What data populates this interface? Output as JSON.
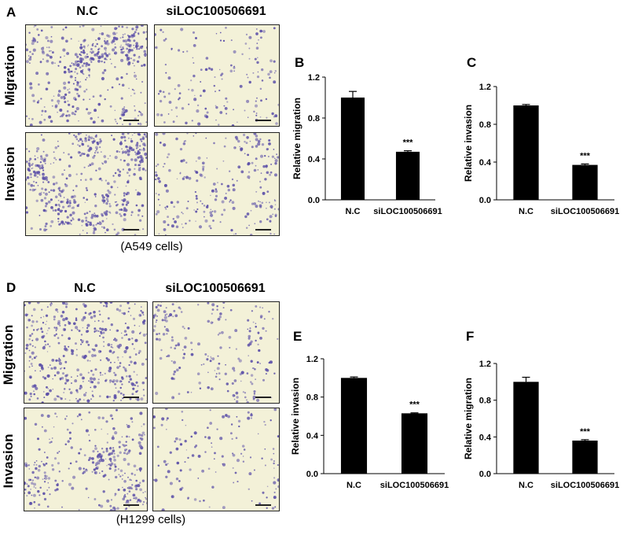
{
  "groups": [
    {
      "panel": "A",
      "columns": [
        "N.C",
        "siLOC100506691"
      ],
      "rows": [
        "Migration",
        "Invasion"
      ],
      "caption": "(A549 cells)"
    },
    {
      "panel": "D",
      "columns": [
        "N.C",
        "siLOC100506691"
      ],
      "rows": [
        "Migration",
        "Invasion"
      ],
      "caption": "(H1299 cells)"
    }
  ],
  "colors": {
    "bar": "#000000",
    "stain": "#5b4fa8",
    "background": "#f3f1d8"
  },
  "chart_data": [
    {
      "panel": "B",
      "type": "bar",
      "categories": [
        "N.C",
        "siLOC100506691"
      ],
      "values": [
        1.0,
        0.47
      ],
      "errors": [
        0.06,
        0.01
      ],
      "annotations": [
        "",
        "***"
      ],
      "ylabel": "Relative migration",
      "ylim": [
        0,
        1.2
      ],
      "yticks": [
        "0.0",
        "0.4",
        "0.8",
        "1.2"
      ]
    },
    {
      "panel": "C",
      "type": "bar",
      "categories": [
        "N.C",
        "siLOC100506691"
      ],
      "values": [
        1.0,
        0.37
      ],
      "errors": [
        0.01,
        0.01
      ],
      "annotations": [
        "",
        "***"
      ],
      "ylabel": "Relative invasion",
      "ylim": [
        0,
        1.2
      ],
      "yticks": [
        "0.0",
        "0.4",
        "0.8",
        "1.2"
      ]
    },
    {
      "panel": "E",
      "type": "bar",
      "categories": [
        "N.C",
        "siLOC100506691"
      ],
      "values": [
        1.0,
        0.63
      ],
      "errors": [
        0.01,
        0.005
      ],
      "annotations": [
        "",
        "***"
      ],
      "ylabel": "Relative invasion",
      "ylim": [
        0,
        1.2
      ],
      "yticks": [
        "0.0",
        "0.4",
        "0.8",
        "1.2"
      ]
    },
    {
      "panel": "F",
      "type": "bar",
      "categories": [
        "N.C",
        "siLOC100506691"
      ],
      "values": [
        1.0,
        0.36
      ],
      "errors": [
        0.05,
        0.01
      ],
      "annotations": [
        "",
        "***"
      ],
      "ylabel": "Relative migration",
      "ylim": [
        0,
        1.2
      ],
      "yticks": [
        "0.0",
        "0.4",
        "0.8",
        "1.2"
      ]
    }
  ]
}
